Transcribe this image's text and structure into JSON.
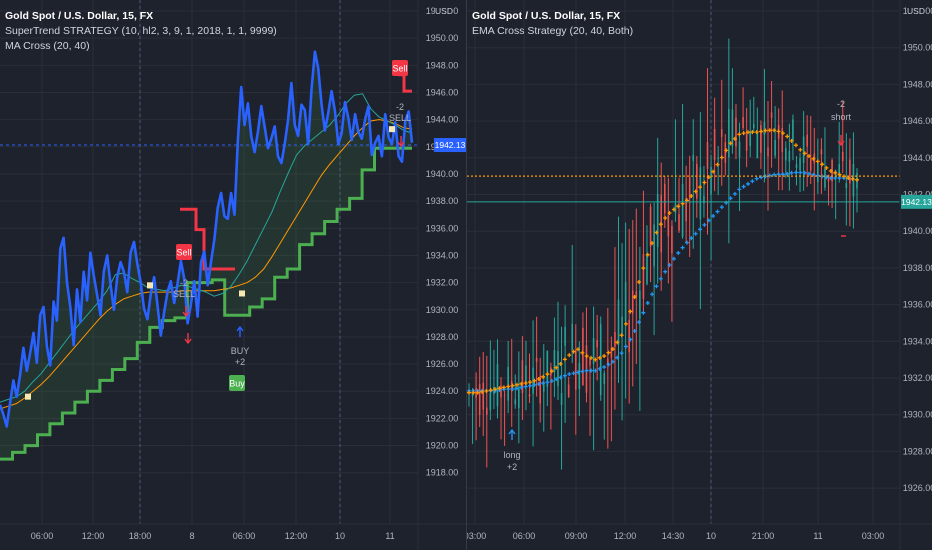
{
  "colors": {
    "bg": "#1e222d",
    "grid": "#2a2e39",
    "axis_text": "#b2b5be",
    "price_blue": "#2962ff",
    "supertrend_green": "#4caf50",
    "supertrend_red": "#f23645",
    "ma_fast": "#26a69a",
    "ma_slow": "#ff9800",
    "ema_fast": "#ff9800",
    "ema_slow": "#2196f3",
    "candle_up": "#26a69a",
    "candle_down": "#ef5350",
    "crosshair": "#2962ff"
  },
  "left_chart": {
    "legend": {
      "title": "Gold Spot / U.S. Dollar, 15, FX",
      "indicator1": "SuperTrend STRATEGY (10, hl2, 3, 9, 1, 2018, 1, 1, 9999)",
      "indicator2": "MA Cross (20, 40)"
    },
    "axis_unit": "USD",
    "crosshair_price": "1942.13",
    "y_ticks": [
      "1918.00",
      "1920.00",
      "1922.00",
      "1924.00",
      "1926.00",
      "1928.00",
      "1930.00",
      "1932.00",
      "1934.00",
      "1936.00",
      "1938.00",
      "1940.00",
      "1942.00",
      "1944.00",
      "1946.00",
      "1948.00",
      "1950.00",
      "1952.00"
    ],
    "x_ticks": [
      "06:00",
      "12:00",
      "18:00",
      "8",
      "06:00",
      "12:00",
      "10",
      "11"
    ],
    "signals": [
      {
        "kind": "sell-box",
        "label": "Sell"
      },
      {
        "kind": "sell-box",
        "label": "Sell"
      },
      {
        "kind": "buy-box",
        "label": "Buy"
      }
    ],
    "trade_labels": [
      {
        "line1": "-2",
        "line2": "SELL"
      },
      {
        "line1": "BUY",
        "line2": "+2"
      },
      {
        "line1": "-2",
        "line2": "SELL"
      }
    ]
  },
  "right_chart": {
    "legend": {
      "title": "Gold Spot / U.S. Dollar, 15, FX",
      "indicator1": "EMA Cross Strategy (20, 40, Both)"
    },
    "axis_unit": "USD",
    "crosshair_price": "1942.13",
    "y_ticks": [
      "1926.00",
      "1928.00",
      "1930.00",
      "1932.00",
      "1934.00",
      "1936.00",
      "1938.00",
      "1940.00",
      "1942.00",
      "1944.00",
      "1946.00",
      "1948.00",
      "1950.00",
      "1952.00"
    ],
    "x_ticks": [
      "03:00",
      "06:00",
      "09:00",
      "12:00",
      "14:30",
      "10",
      "21:00",
      "11",
      "03:00"
    ],
    "trade_labels": [
      {
        "line1": "long",
        "line2": "+2"
      },
      {
        "line1": "-2",
        "line2": "short"
      }
    ]
  },
  "chart_data": [
    {
      "type": "line",
      "title": "Gold Spot / U.S. Dollar, 15, FX",
      "ylabel": "USD",
      "ylim": [
        1917.2,
        1952.4
      ],
      "series": [
        {
          "name": "price",
          "values": [
            1923.0,
            1922.3,
            1921.4,
            1923.1,
            1924.8,
            1923.6,
            1925.2,
            1927.2,
            1925.5,
            1926.8,
            1928.3,
            1926.1,
            1929.6,
            1930.2,
            1927.3,
            1925.9,
            1930.6,
            1929.2,
            1934.5,
            1935.3,
            1932.0,
            1930.2,
            1927.4,
            1931.5,
            1929.1,
            1932.8,
            1930.7,
            1934.2,
            1932.5,
            1931.1,
            1929.6,
            1932.8,
            1934.0,
            1931.9,
            1930.0,
            1932.4,
            1933.5,
            1932.8,
            1931.3,
            1934.2,
            1935.0,
            1933.4,
            1932.0,
            1930.1,
            1929.3,
            1931.1,
            1932.4,
            1930.4,
            1928.1,
            1929.8,
            1931.3,
            1932.1,
            1930.5,
            1931.9,
            1933.6,
            1932.3,
            1929.0,
            1930.4,
            1932.1,
            1929.5,
            1933.5,
            1934.3,
            1931.8,
            1933.5,
            1935.2,
            1937.5,
            1938.6,
            1936.9,
            1936.7,
            1938.6,
            1937.0,
            1942.4,
            1946.4,
            1943.6,
            1945.2,
            1942.8,
            1941.6,
            1943.1,
            1945.0,
            1943.5,
            1941.9,
            1942.6,
            1943.5,
            1941.3,
            1940.8,
            1942.2,
            1944.0,
            1946.7,
            1943.6,
            1942.8,
            1945.1,
            1944.7,
            1942.2,
            1946.2,
            1949.0,
            1947.8,
            1945.1,
            1943.2,
            1944.5,
            1946.1,
            1944.6,
            1942.2,
            1943.0,
            1945.3,
            1944.1,
            1942.5,
            1944.4,
            1943.1,
            1942.6,
            1944.0,
            1945.0,
            1941.4,
            1942.3,
            1942.8,
            1941.3,
            1944.4,
            1942.7,
            1942.2,
            1943.8,
            1941.3,
            1940.9,
            1943.9,
            1944.6,
            1942.3
          ]
        },
        {
          "name": "supertrend_up",
          "values": [
            1919.0,
            1919.5,
            1920.0,
            1920.8,
            1921.6,
            1922.4,
            1923.2,
            1924.0,
            1924.8,
            1925.6,
            1926.4,
            1927.6,
            1928.7,
            1929.2,
            1929.4,
            1932.0,
            1932.0,
            1932.2,
            1929.6,
            1929.6,
            1930.2,
            1930.8,
            1932.4,
            1933.0,
            1934.8,
            1935.6,
            1936.5,
            1937.4,
            1938.2,
            1940.3,
            1941.9,
            1941.9,
            1941.9,
            1941.9
          ]
        },
        {
          "name": "supertrend_down",
          "values": [
            1937.4,
            1937.4,
            1935.9,
            1933.0,
            1933.0,
            1933.0,
            1933.0,
            1947.3,
            1946.1,
            1946.1
          ]
        },
        {
          "name": "MA 20",
          "values": [
            1923.2,
            1923.4,
            1923.6,
            1924.0,
            1924.7,
            1925.3,
            1926.1,
            1926.9,
            1927.7,
            1928.5,
            1929.2,
            1929.9,
            1930.6,
            1931.4,
            1932.6,
            1932.7,
            1932.3,
            1932.0,
            1931.6,
            1931.5,
            1931.4,
            1931.6,
            1931.8,
            1931.7,
            1931.5,
            1931.3,
            1931.0,
            1931.2,
            1931.7,
            1932.6,
            1933.6,
            1934.8,
            1936.0,
            1937.2,
            1938.7,
            1940.1,
            1941.4,
            1942.1,
            1942.6,
            1943.1,
            1943.6,
            1944.3,
            1945.2,
            1945.8,
            1945.9,
            1944.8,
            1944.2,
            1943.9,
            1943.6,
            1943.2,
            1943.0
          ]
        },
        {
          "name": "MA 40",
          "values": [
            1922.7,
            1922.9,
            1923.1,
            1923.5,
            1924.0,
            1924.5,
            1925.1,
            1925.8,
            1926.5,
            1927.2,
            1927.9,
            1928.6,
            1929.3,
            1929.9,
            1930.4,
            1930.8,
            1931.0,
            1931.2,
            1931.3,
            1931.3,
            1931.3,
            1931.3,
            1931.4,
            1931.4,
            1931.4,
            1931.4,
            1931.4,
            1931.5,
            1931.6,
            1931.8,
            1932.0,
            1932.4,
            1933.0,
            1933.9,
            1934.9,
            1935.9,
            1936.9,
            1937.9,
            1938.9,
            1939.9,
            1940.7,
            1941.4,
            1942.1,
            1942.8,
            1943.4,
            1943.9,
            1944.0,
            1943.9,
            1943.7,
            1943.4,
            1943.3
          ]
        }
      ]
    },
    {
      "type": "line",
      "title": "Gold Spot / U.S. Dollar, 15, FX",
      "ylabel": "USD",
      "ylim": [
        1925.2,
        1952.4
      ],
      "series": [
        {
          "name": "EMA 20",
          "values": [
            1931.2,
            1931.2,
            1931.3,
            1931.4,
            1931.5,
            1931.6,
            1931.7,
            1931.8,
            1932.0,
            1932.3,
            1932.7,
            1933.2,
            1933.6,
            1933.2,
            1933.0,
            1933.2,
            1933.6,
            1934.4,
            1935.8,
            1937.5,
            1939.0,
            1940.2,
            1940.9,
            1941.3,
            1941.6,
            1942.1,
            1942.6,
            1943.2,
            1944.0,
            1944.8,
            1945.3,
            1945.4,
            1945.4,
            1945.5,
            1945.5,
            1945.3,
            1944.8,
            1944.3,
            1944.0,
            1943.7,
            1943.3,
            1943.1,
            1942.9,
            1942.8
          ]
        },
        {
          "name": "EMA 40",
          "values": [
            1931.3,
            1931.3,
            1931.3,
            1931.3,
            1931.4,
            1931.4,
            1931.5,
            1931.6,
            1931.7,
            1931.8,
            1932.0,
            1932.2,
            1932.3,
            1932.4,
            1932.4,
            1932.6,
            1932.9,
            1933.4,
            1934.2,
            1935.2,
            1936.3,
            1937.2,
            1938.0,
            1938.7,
            1939.3,
            1939.8,
            1940.3,
            1940.8,
            1941.3,
            1941.8,
            1942.3,
            1942.6,
            1942.9,
            1943.0,
            1943.1,
            1943.1,
            1943.2,
            1943.2,
            1943.1,
            1943.0,
            1942.9,
            1942.9,
            1942.9,
            1942.8
          ]
        }
      ]
    }
  ]
}
